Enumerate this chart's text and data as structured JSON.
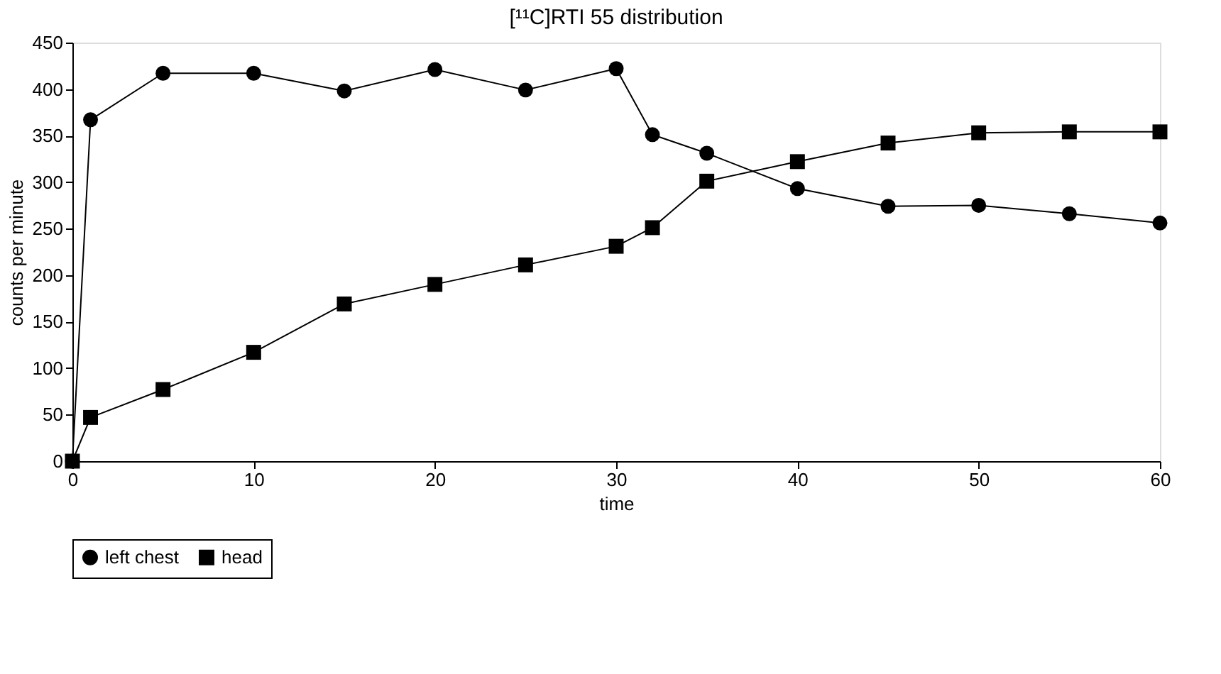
{
  "chart_data": {
    "type": "line",
    "title": "[¹¹C]RTI 55 distribution",
    "xlabel": "time",
    "ylabel": "counts per minute",
    "x": [
      0,
      1,
      5,
      10,
      15,
      20,
      25,
      30,
      32,
      35,
      40,
      45,
      50,
      55,
      60
    ],
    "series": [
      {
        "name": "left chest",
        "color": "#000000",
        "marker": "circle",
        "values": [
          0,
          367,
          417,
          417,
          398,
          421,
          399,
          422,
          351,
          331,
          293,
          274,
          275,
          266,
          256
        ]
      },
      {
        "name": "head",
        "color": "#000000",
        "marker": "square",
        "values": [
          0,
          47,
          77,
          117,
          169,
          190,
          211,
          231,
          251,
          301,
          322,
          342,
          353,
          354,
          354
        ]
      }
    ],
    "xlim": [
      0,
      60
    ],
    "xticks": [
      0,
      10,
      20,
      30,
      40,
      50,
      60
    ],
    "ylim": [
      0,
      450
    ],
    "yticks": [
      0,
      50,
      100,
      150,
      200,
      250,
      300,
      350,
      400,
      450
    ],
    "grid": false,
    "legend": "bottom",
    "line_style": "solid"
  }
}
